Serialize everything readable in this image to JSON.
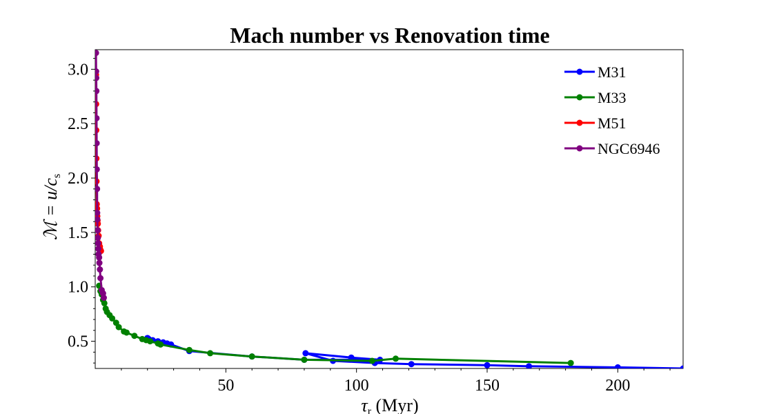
{
  "chart_data": {
    "type": "line",
    "title": "Mach number vs Renovation time",
    "xlabel_main": "τ",
    "xlabel_sub": "r",
    "xlabel_rest": " (Myr)",
    "ylabel": "ℳ = u/c",
    "ylabel_sub": "s",
    "xlim": [
      0,
      225
    ],
    "ylim": [
      0.25,
      3.18
    ],
    "xticks": [
      50,
      100,
      150,
      200
    ],
    "yticks": [
      0.5,
      1.0,
      1.5,
      2.0,
      2.5,
      3.0
    ],
    "xtick_labels": [
      "50",
      "100",
      "150",
      "200"
    ],
    "ytick_labels": [
      "0.5",
      "1.0",
      "1.5",
      "2.0",
      "2.5",
      "3.0"
    ],
    "legend_position": "top-right",
    "series": [
      {
        "name": "M31",
        "color": "#0000ff",
        "x": [
          225,
          200,
          166,
          150,
          121,
          107,
          91,
          80.5,
          98,
          109,
          80,
          60,
          36,
          29,
          27.5,
          26,
          24,
          22,
          20.5,
          20
        ],
        "y": [
          0.25,
          0.26,
          0.27,
          0.28,
          0.29,
          0.3,
          0.32,
          0.39,
          0.35,
          0.33,
          0.33,
          0.36,
          0.41,
          0.47,
          0.48,
          0.49,
          0.5,
          0.51,
          0.52,
          0.53
        ]
      },
      {
        "name": "M33",
        "color": "#008000",
        "x": [
          182,
          115,
          106,
          80,
          60,
          44,
          36,
          25,
          24,
          21,
          19.5,
          18,
          15,
          12,
          11,
          9,
          8,
          6.5,
          5.5,
          4.5,
          4,
          3.5,
          3,
          2.5,
          2,
          1.5
        ],
        "y": [
          0.3,
          0.34,
          0.32,
          0.33,
          0.36,
          0.39,
          0.42,
          0.47,
          0.48,
          0.5,
          0.51,
          0.52,
          0.55,
          0.58,
          0.59,
          0.63,
          0.67,
          0.71,
          0.74,
          0.77,
          0.8,
          0.85,
          0.88,
          0.93,
          0.96,
          1.01
        ]
      },
      {
        "name": "M51",
        "color": "#ff0000",
        "x": [
          0.3,
          0.35,
          0.4,
          0.45,
          0.5,
          0.6,
          0.7,
          0.8,
          0.9,
          1.0,
          1.1,
          1.3,
          1.5,
          1.8,
          2.0,
          2.2
        ],
        "y": [
          2.95,
          2.68,
          2.44,
          2.18,
          1.97,
          1.76,
          1.72,
          1.65,
          1.61,
          1.58,
          1.52,
          1.47,
          1.4,
          1.37,
          1.34,
          1.33
        ]
      },
      {
        "name": "NGC6946",
        "color": "#800080",
        "x": [
          0.3,
          0.35,
          0.4,
          0.45,
          0.5,
          0.55,
          0.6,
          0.7,
          0.75,
          0.8,
          0.9,
          1.0,
          1.1,
          1.2,
          1.3,
          1.5,
          1.6,
          1.8,
          2.0,
          2.5,
          3.0,
          3.3
        ],
        "y": [
          3.15,
          2.98,
          2.92,
          2.8,
          2.55,
          2.32,
          2.08,
          1.9,
          1.68,
          1.62,
          1.52,
          1.45,
          1.4,
          1.35,
          1.3,
          1.27,
          1.22,
          1.16,
          1.08,
          0.97,
          0.94,
          0.9
        ]
      }
    ]
  }
}
